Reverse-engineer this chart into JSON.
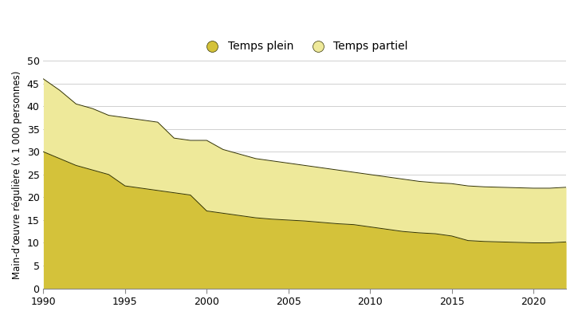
{
  "years": [
    1990,
    1991,
    1992,
    1993,
    1994,
    1995,
    1996,
    1997,
    1998,
    1999,
    2000,
    2001,
    2002,
    2003,
    2004,
    2005,
    2006,
    2007,
    2008,
    2009,
    2010,
    2011,
    2012,
    2013,
    2014,
    2015,
    2016,
    2017,
    2018,
    2019,
    2020,
    2021,
    2022
  ],
  "temps_plein": [
    30.0,
    28.5,
    27.0,
    26.0,
    25.0,
    22.5,
    22.0,
    21.5,
    21.0,
    20.5,
    17.0,
    16.5,
    16.0,
    15.5,
    15.2,
    15.0,
    14.8,
    14.5,
    14.2,
    14.0,
    13.5,
    13.0,
    12.5,
    12.2,
    12.0,
    11.5,
    10.5,
    10.3,
    10.2,
    10.1,
    10.0,
    10.0,
    10.2
  ],
  "temps_total": [
    46.0,
    43.5,
    40.5,
    39.5,
    38.0,
    37.5,
    37.0,
    36.5,
    33.0,
    32.5,
    32.5,
    30.5,
    29.5,
    28.5,
    28.0,
    27.5,
    27.0,
    26.5,
    26.0,
    25.5,
    25.0,
    24.5,
    24.0,
    23.5,
    23.2,
    23.0,
    22.5,
    22.3,
    22.2,
    22.1,
    22.0,
    22.0,
    22.2
  ],
  "color_temps_plein": "#d4c23a",
  "color_temps_partiel": "#eee99a",
  "color_border": "#333300",
  "ylabel": "Main-d’œuvre régulière (x 1 000 personnes)",
  "ylim": [
    0,
    50
  ],
  "yticks": [
    0,
    5,
    10,
    15,
    20,
    25,
    30,
    35,
    40,
    45,
    50
  ],
  "xlim": [
    1990,
    2022
  ],
  "xticks": [
    1990,
    1995,
    2000,
    2005,
    2010,
    2015,
    2020
  ],
  "legend_label_plein": "Temps plein",
  "legend_label_partiel": "Temps partiel",
  "background_color": "#ffffff",
  "grid_color": "#d0d0d0"
}
